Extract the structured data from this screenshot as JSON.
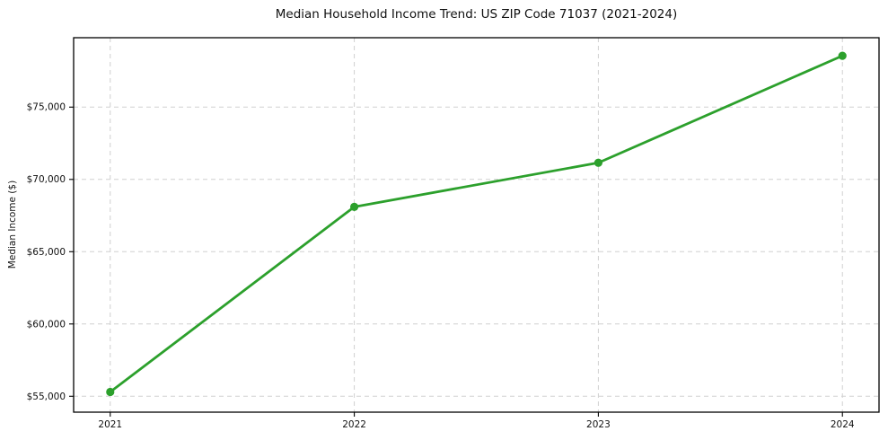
{
  "chart_data": {
    "type": "line",
    "title": "Median Household Income Trend: US ZIP Code 71037 (2021-2024)",
    "xlabel": "",
    "ylabel": "Median Income ($)",
    "x": [
      2021,
      2022,
      2023,
      2024
    ],
    "x_tick_labels": [
      "2021",
      "2022",
      "2023",
      "2024"
    ],
    "series": [
      {
        "name": "Median Household Income",
        "values": [
          55300,
          68100,
          71150,
          78550
        ]
      }
    ],
    "y_ticks": [
      55000,
      60000,
      65000,
      70000,
      75000
    ],
    "y_tick_labels": [
      "$55,000",
      "$60,000",
      "$65,000",
      "$70,000",
      "$75,000"
    ],
    "xlim": [
      2020.85,
      2024.15
    ],
    "ylim": [
      53900,
      79800
    ],
    "grid": true,
    "grid_style": "dashed",
    "legend": false,
    "colors": {
      "line": "#2ca02c",
      "marker": "#2ca02c",
      "grid": "#d0d0d0",
      "spine": "#000000",
      "text": "#111111",
      "background": "#ffffff"
    }
  }
}
